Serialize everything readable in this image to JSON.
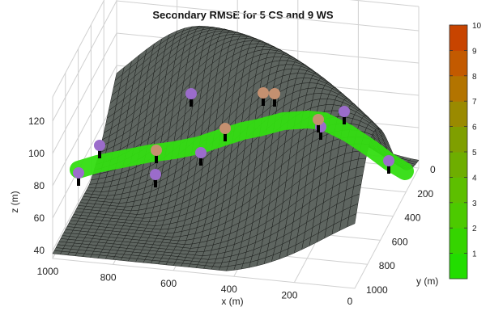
{
  "figure": {
    "title": "Secondary RMSE for 5 CS and 9 WS"
  },
  "colors": {
    "terrain_fill": "#5e6560",
    "terrain_mesh": "#161816",
    "river": "#33dd11",
    "station_cs": "#c49070",
    "station_ws": "#9b6ccb",
    "pole": "#000000",
    "box_lines": "#d0d0d0"
  },
  "chart_data": {
    "type": "surface",
    "title": "Secondary RMSE for 5 CS and 9 WS",
    "xlabel": "x (m)",
    "ylabel": "y (m)",
    "zlabel": "z (m)",
    "xlim": [
      0,
      1000
    ],
    "ylim": [
      0,
      1000
    ],
    "zlim": [
      35,
      135
    ],
    "x_ticks": [
      "1000",
      "800",
      "600",
      "400",
      "200",
      "0"
    ],
    "y_ticks": [
      "0",
      "200",
      "400",
      "600",
      "800",
      "1000"
    ],
    "z_ticks": [
      "120",
      "100",
      "80",
      "60",
      "40"
    ],
    "colorbar": {
      "range": [
        0,
        10
      ],
      "tick_labels": [
        "1",
        "2",
        "3",
        "4",
        "5",
        "6",
        "7",
        "8",
        "9",
        "10"
      ],
      "colors": [
        "#22dd00",
        "#35d400",
        "#4cca00",
        "#5dbf00",
        "#6eae00",
        "#7f9f00",
        "#9a8a00",
        "#b37400",
        "#c35a00",
        "#c84400"
      ]
    },
    "stations": {
      "cs": [
        {
          "x": 790,
          "y": 420,
          "z": 114,
          "rmse": 2.0
        },
        {
          "x": 680,
          "y": 520,
          "z": 114,
          "rmse": 2.0
        },
        {
          "x": 420,
          "y": 560,
          "z": 113,
          "rmse": 2.0
        },
        {
          "x": 330,
          "y": 175,
          "z": 118,
          "rmse": 2.0
        },
        {
          "x": 300,
          "y": 185,
          "z": 118,
          "rmse": 2.0
        }
      ],
      "ws": [
        {
          "x": 970,
          "y": 380,
          "z": 112,
          "rmse": 1.5
        },
        {
          "x": 960,
          "y": 470,
          "z": 110,
          "rmse": 1.5
        },
        {
          "x": 860,
          "y": 560,
          "z": 110,
          "rmse": 1.5
        },
        {
          "x": 700,
          "y": 600,
          "z": 113,
          "rmse": 1.5
        },
        {
          "x": 510,
          "y": 200,
          "z": 116,
          "rmse": 1.5
        },
        {
          "x": 240,
          "y": 410,
          "z": 113,
          "rmse": 1.5
        },
        {
          "x": 210,
          "y": 290,
          "z": 118,
          "rmse": 1.5
        },
        {
          "x": 110,
          "y": 680,
          "z": 108,
          "rmse": 1.5
        },
        {
          "x": 240,
          "y": 440,
          "z": 113,
          "rmse": 1.5
        }
      ]
    }
  }
}
